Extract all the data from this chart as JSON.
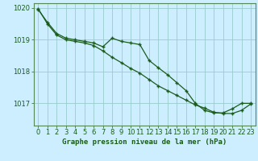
{
  "title": "Graphe pression niveau de la mer (hPa)",
  "background_color": "#cceeff",
  "grid_color": "#99cccc",
  "line_color": "#1a5c1a",
  "xlim": [
    -0.5,
    23.5
  ],
  "ylim": [
    1016.3,
    1020.15
  ],
  "yticks": [
    1017,
    1018,
    1019,
    1020
  ],
  "xticks": [
    0,
    1,
    2,
    3,
    4,
    5,
    6,
    7,
    8,
    9,
    10,
    11,
    12,
    13,
    14,
    15,
    16,
    17,
    18,
    19,
    20,
    21,
    22,
    23
  ],
  "series1_x": [
    0,
    1,
    2,
    3,
    4,
    5,
    6,
    7,
    8,
    9,
    10,
    11,
    12,
    13,
    14,
    15,
    16,
    17,
    18,
    19,
    20,
    21,
    22,
    23
  ],
  "series1_y": [
    1019.95,
    1019.55,
    1019.2,
    1019.05,
    1019.0,
    1018.95,
    1018.9,
    1018.78,
    1019.05,
    1018.95,
    1018.9,
    1018.85,
    1018.35,
    1018.12,
    1017.9,
    1017.65,
    1017.4,
    1017.0,
    1016.78,
    1016.7,
    1016.7,
    1016.83,
    1017.0,
    1017.0
  ],
  "series2_x": [
    0,
    1,
    2,
    3,
    4,
    5,
    6,
    7,
    8,
    9,
    10,
    11,
    12,
    13,
    14,
    15,
    16,
    17,
    18,
    19,
    20,
    21,
    22,
    23
  ],
  "series2_y": [
    1019.98,
    1019.5,
    1019.15,
    1019.0,
    1018.95,
    1018.9,
    1018.82,
    1018.65,
    1018.45,
    1018.28,
    1018.1,
    1017.95,
    1017.75,
    1017.55,
    1017.4,
    1017.25,
    1017.1,
    1016.95,
    1016.85,
    1016.72,
    1016.68,
    1016.68,
    1016.78,
    1016.98
  ],
  "tick_fontsize": 6,
  "xlabel_fontsize": 6.5
}
